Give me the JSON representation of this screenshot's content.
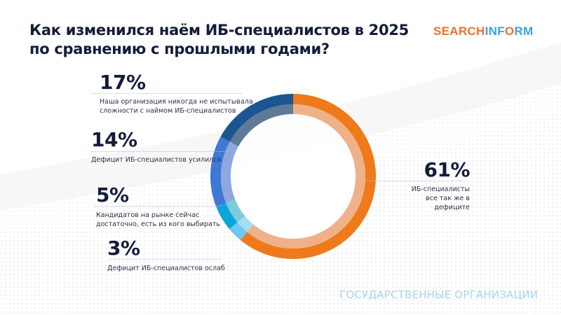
{
  "header": {
    "title_line1": "Как изменился наём ИБ-специалистов в 2025",
    "title_line2": "по сравнению с прошлыми годами?"
  },
  "logo": {
    "part1": "SEARCH",
    "part2": "INF",
    "part3": "O",
    "part4": "RM"
  },
  "labels": [
    {
      "pct": "17%",
      "line1": "Наша организация никогда не испытывала",
      "line2": "сложности с наймом ИБ-специалистов"
    },
    {
      "pct": "14%",
      "line1": "Дефицит ИБ-специалистов усилился",
      "line2": ""
    },
    {
      "pct": "5%",
      "line1": "Кандидатов на рынке сейчас",
      "line2": "достаточно, есть из кого выбирать"
    },
    {
      "pct": "3%",
      "line1": "Дефицит ИБ-специалистов ослаб",
      "line2": ""
    },
    {
      "pct": "61%",
      "line1": "ИБ-специалисты",
      "line2": "все так же в дефиците"
    }
  ],
  "footer": {
    "text": "ГОСУДАРСТВЕННЫЕ ОРГАНИЗАЦИИ"
  },
  "chart_data": {
    "type": "pie",
    "title": "Как изменился наём ИБ-специалистов в 2025 по сравнению с прошлыми годами?",
    "subtitle": "Государственные организации",
    "donut": true,
    "categories": [
      "ИБ-специалисты все так же в дефиците",
      "Дефицит ИБ-специалистов ослаб",
      "Кандидатов на рынке сейчас достаточно, есть из кого выбирать",
      "Дефицит ИБ-специалистов усилился",
      "Наша организация никогда не испытывала сложности с наймом ИБ-специалистов"
    ],
    "values": [
      61,
      3,
      5,
      14,
      17
    ],
    "colors": [
      "#ee7a1a",
      "#6cc7f2",
      "#0aa6d8",
      "#3f78d6",
      "#1c5592"
    ],
    "inner_colors": [
      "#efb18a",
      "#a8dcf0",
      "#7fcbdc",
      "#8fa6e0",
      "#5f7a96"
    ],
    "start_angle_deg": 0,
    "direction": "clockwise"
  }
}
